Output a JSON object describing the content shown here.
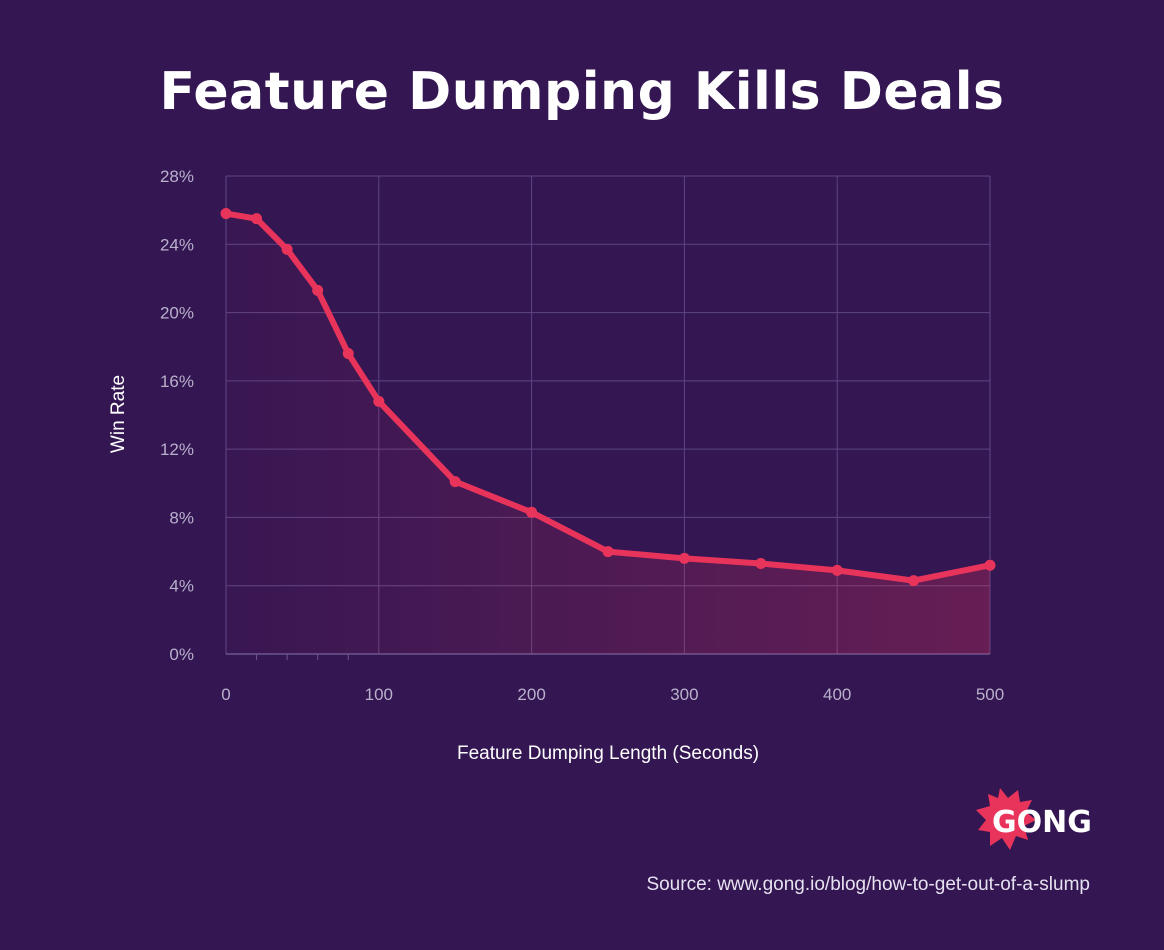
{
  "chart_data": {
    "type": "area",
    "title": "Feature Dumping Kills Deals",
    "xlabel": "Feature Dumping Length (Seconds)",
    "ylabel": "Win Rate",
    "xlim": [
      0,
      500
    ],
    "ylim": [
      0,
      28
    ],
    "x_ticks": [
      0,
      100,
      200,
      300,
      400,
      500
    ],
    "y_ticks": [
      0,
      4,
      8,
      12,
      16,
      20,
      24,
      28
    ],
    "y_tick_labels": [
      "0%",
      "4%",
      "8%",
      "12%",
      "16%",
      "20%",
      "24%",
      "28%"
    ],
    "grid": true,
    "series": [
      {
        "x": [
          0,
          20,
          40,
          60,
          80,
          100,
          150,
          200,
          250,
          300,
          350,
          400,
          450,
          500
        ],
        "y": [
          25.8,
          25.5,
          23.7,
          21.3,
          17.6,
          14.8,
          10.1,
          8.3,
          6.0,
          5.6,
          5.3,
          4.9,
          4.3,
          5.2
        ]
      }
    ],
    "colors": {
      "line": "#e8345a",
      "background": "#331652",
      "grid": "#5d4683"
    }
  },
  "logo": {
    "text": "GONG",
    "color": "#e8345a"
  },
  "source": "Source: www.gong.io/blog/how-to-get-out-of-a-slump"
}
